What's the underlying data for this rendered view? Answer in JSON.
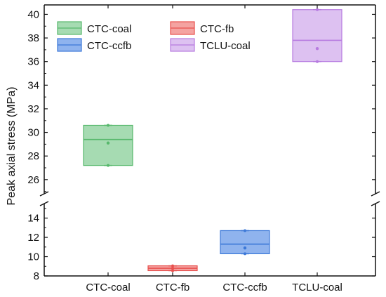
{
  "chart_data": {
    "type": "box",
    "title": "",
    "xlabel": "",
    "ylabel": "Peak axial stress (MPa)",
    "categories": [
      "CTC-coal",
      "CTC-fb",
      "CTC-ccfb",
      "TCLU-coal"
    ],
    "y_axis": {
      "broken": true,
      "lower_segment": {
        "range": [
          8,
          15.5
        ],
        "ticks": [
          8,
          10,
          12,
          14
        ]
      },
      "upper_segment": {
        "range": [
          24.8,
          40.8
        ],
        "ticks": [
          26,
          28,
          30,
          32,
          34,
          36,
          38,
          40
        ]
      }
    },
    "series": [
      {
        "name": "CTC-coal",
        "color": "#57b86c",
        "fill": "#a6dbb2",
        "min": 27.2,
        "q1": 27.2,
        "median": 29.4,
        "q3": 30.6,
        "max": 30.6,
        "mean": 29.1
      },
      {
        "name": "CTC-fb",
        "color": "#e8504e",
        "fill": "#f4a3a1",
        "min": 8.55,
        "q1": 8.55,
        "median": 8.8,
        "q3": 9.05,
        "max": 9.05,
        "mean": 8.8
      },
      {
        "name": "CTC-ccfb",
        "color": "#3c78d8",
        "fill": "#8fb3ee",
        "min": 10.3,
        "q1": 10.3,
        "median": 11.3,
        "q3": 12.7,
        "max": 12.7,
        "mean": 10.9
      },
      {
        "name": "TCLU-coal",
        "color": "#b77be0",
        "fill": "#ddc1f1",
        "min": 36.0,
        "q1": 36.0,
        "median": 37.8,
        "q3": 40.4,
        "max": 40.4,
        "mean": 37.1
      }
    ],
    "legend": {
      "position": "top-left",
      "columns": 2
    },
    "grid": false
  }
}
